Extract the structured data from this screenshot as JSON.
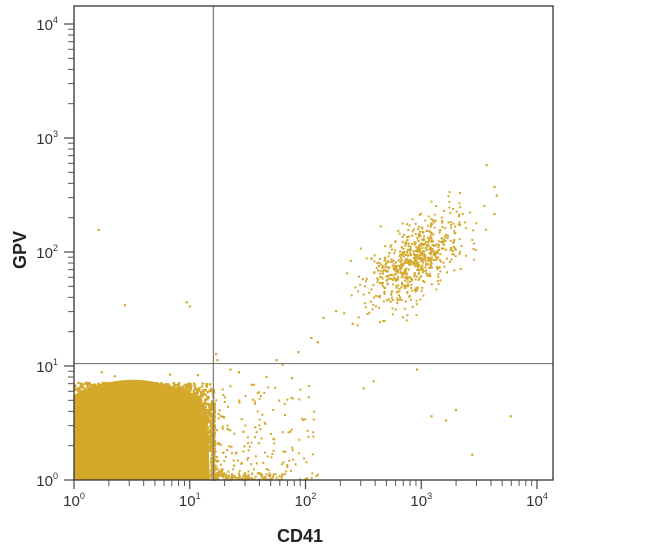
{
  "chart_data": {
    "type": "scatter",
    "subtype": "flow-cytometry-dot-plot",
    "title": "",
    "xlabel": "CD41",
    "ylabel": "GPV",
    "xscale": "log",
    "yscale": "log",
    "xlim": [
      1,
      10000
    ],
    "ylim": [
      1,
      10000
    ],
    "x_ticks": [
      {
        "base": "10",
        "exp": "0",
        "value": 1
      },
      {
        "base": "10",
        "exp": "1",
        "value": 10
      },
      {
        "base": "10",
        "exp": "2",
        "value": 100
      },
      {
        "base": "10",
        "exp": "3",
        "value": 1000
      },
      {
        "base": "10",
        "exp": "4",
        "value": 10000
      }
    ],
    "y_ticks": [
      {
        "base": "10",
        "exp": "0",
        "value": 1
      },
      {
        "base": "10",
        "exp": "1",
        "value": 10
      },
      {
        "base": "10",
        "exp": "2",
        "value": 100
      },
      {
        "base": "10",
        "exp": "3",
        "value": 1000
      },
      {
        "base": "10",
        "exp": "4",
        "value": 10000
      }
    ],
    "grid": false,
    "legend": null,
    "dot_color": "#D4A82A",
    "quadrant_gates": {
      "x": 16,
      "y": 10.5,
      "color": "#7a7a7a"
    },
    "populations": [
      {
        "name": "CD41-negative / GPV-negative (lower-left)",
        "description": "dense population",
        "x_log_center": 0.55,
        "x_log_spread": 0.38,
        "x_range": [
          1,
          16
        ],
        "y_log_center": 0.25,
        "y_log_spread": 0.3,
        "y_range": [
          1,
          7
        ],
        "count": 9000
      },
      {
        "name": "CD41+ GPV+ (upper-right)",
        "description": "double-positive platelet population",
        "x_log_center": 2.95,
        "x_log_spread": 0.2,
        "y_log_center": 1.95,
        "y_log_spread": 0.2,
        "correlation": 0.6,
        "count": 700
      },
      {
        "name": "CD41 dim tail (lower-right)",
        "description": "sparse events just right of the gate",
        "x_log_range": [
          1.2,
          2.1
        ],
        "y_log_range": [
          0.0,
          0.85
        ],
        "count": 220
      }
    ],
    "outliers": [
      [
        1.6,
        160
      ],
      [
        2.7,
        35
      ],
      [
        9.2,
        37
      ],
      [
        9.8,
        34
      ],
      [
        1.7,
        9
      ],
      [
        2.2,
        8.3
      ],
      [
        6.6,
        8.6
      ],
      [
        9,
        7
      ],
      [
        11.5,
        8.5
      ],
      [
        16.5,
        13
      ],
      [
        17,
        11.5
      ],
      [
        22,
        9.5
      ],
      [
        26,
        9
      ],
      [
        35,
        7
      ],
      [
        45,
        8.2
      ],
      [
        55,
        11.5
      ],
      [
        62,
        10.5
      ],
      [
        75,
        8
      ],
      [
        85,
        13.5
      ],
      [
        110,
        18
      ],
      [
        125,
        16.5
      ],
      [
        140,
        27
      ],
      [
        180,
        31
      ],
      [
        250,
        24
      ],
      [
        310,
        6.5
      ],
      [
        380,
        7.5
      ],
      [
        900,
        9.5
      ],
      [
        1950,
        4.2
      ],
      [
        1200,
        3.7
      ],
      [
        1600,
        3.4
      ],
      [
        5800,
        3.7
      ],
      [
        3600,
        590
      ],
      [
        4200,
        380
      ],
      [
        4400,
        320
      ],
      [
        4200,
        220
      ],
      [
        2700,
        1.7
      ]
    ]
  }
}
